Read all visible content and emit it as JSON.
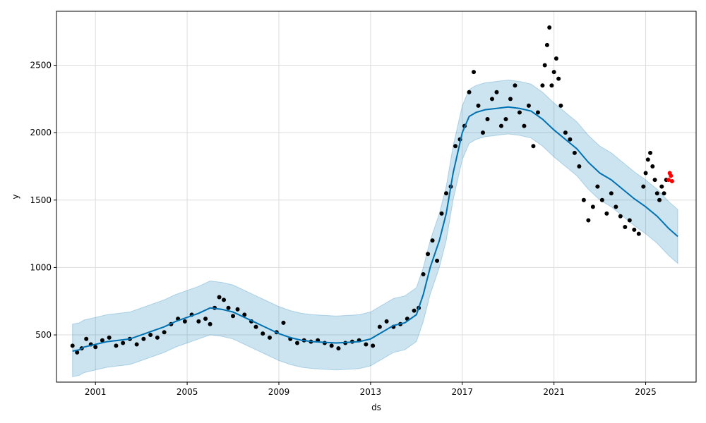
{
  "chart_data": {
    "type": "line",
    "xlabel": "ds",
    "ylabel": "y",
    "xlim": [
      1999.3,
      2027.2
    ],
    "ylim": [
      150,
      2900
    ],
    "grid": true,
    "x_ticks": [
      {
        "value": 2001,
        "label": "2001"
      },
      {
        "value": 2005,
        "label": "2005"
      },
      {
        "value": 2009,
        "label": "2009"
      },
      {
        "value": 2013,
        "label": "2013"
      },
      {
        "value": 2017,
        "label": "2017"
      },
      {
        "value": 2021,
        "label": "2021"
      },
      {
        "value": 2025,
        "label": "2025"
      }
    ],
    "y_ticks": [
      {
        "value": 500,
        "label": "500"
      },
      {
        "value": 1000,
        "label": "1000"
      },
      {
        "value": 1500,
        "label": "1500"
      },
      {
        "value": 2000,
        "label": "2000"
      },
      {
        "value": 2500,
        "label": "2500"
      }
    ],
    "colors": {
      "forecast_line": "#0072b2",
      "uncertainty_band": "#0072b2",
      "observed_points": "#000000",
      "test_points": "#ff0000",
      "grid": "#dddddd"
    },
    "series": [
      {
        "kind": "forecast",
        "x": [
          2000.0,
          2000.3,
          2000.5,
          2001.0,
          2001.5,
          2002.0,
          2002.5,
          2003.0,
          2003.5,
          2004.0,
          2004.5,
          2005.0,
          2005.5,
          2006.0,
          2006.5,
          2007.0,
          2007.5,
          2008.0,
          2008.5,
          2009.0,
          2009.5,
          2010.0,
          2010.5,
          2011.0,
          2011.5,
          2012.0,
          2012.5,
          2013.0,
          2013.5,
          2014.0,
          2014.5,
          2015.0,
          2015.3,
          2015.6,
          2016.0,
          2016.3,
          2016.6,
          2017.0,
          2017.3,
          2017.6,
          2018.0,
          2018.5,
          2019.0,
          2019.5,
          2020.0,
          2020.5,
          2021.0,
          2021.5,
          2022.0,
          2022.5,
          2023.0,
          2023.5,
          2024.0,
          2024.5,
          2025.0,
          2025.5,
          2026.0,
          2026.4
        ],
        "yhat": [
          380,
          390,
          410,
          430,
          450,
          460,
          470,
          500,
          530,
          560,
          600,
          630,
          660,
          700,
          690,
          670,
          630,
          590,
          550,
          510,
          480,
          460,
          450,
          445,
          440,
          445,
          450,
          470,
          520,
          570,
          590,
          650,
          800,
          1000,
          1200,
          1400,
          1700,
          2000,
          2120,
          2150,
          2170,
          2180,
          2190,
          2180,
          2160,
          2100,
          2020,
          1950,
          1880,
          1780,
          1700,
          1650,
          1580,
          1510,
          1450,
          1380,
          1290,
          1230
        ],
        "yhat_lower": [
          190,
          200,
          220,
          240,
          260,
          270,
          280,
          310,
          340,
          370,
          410,
          440,
          470,
          500,
          490,
          470,
          430,
          390,
          350,
          310,
          280,
          260,
          250,
          245,
          240,
          245,
          250,
          270,
          320,
          370,
          390,
          450,
          600,
          800,
          1000,
          1200,
          1500,
          1800,
          1920,
          1950,
          1970,
          1980,
          1990,
          1980,
          1960,
          1900,
          1820,
          1750,
          1680,
          1580,
          1500,
          1450,
          1380,
          1310,
          1250,
          1180,
          1090,
          1030
        ],
        "yhat_upper": [
          580,
          590,
          610,
          630,
          650,
          660,
          670,
          700,
          730,
          760,
          800,
          830,
          860,
          900,
          890,
          870,
          830,
          790,
          750,
          710,
          680,
          660,
          650,
          645,
          640,
          645,
          650,
          670,
          720,
          770,
          790,
          850,
          1000,
          1200,
          1400,
          1600,
          1900,
          2200,
          2320,
          2350,
          2370,
          2380,
          2390,
          2380,
          2360,
          2300,
          2220,
          2150,
          2080,
          1980,
          1900,
          1850,
          1780,
          1710,
          1650,
          1580,
          1490,
          1430
        ]
      },
      {
        "kind": "observed",
        "x": [
          2000.0,
          2000.2,
          2000.4,
          2000.6,
          2000.8,
          2001.0,
          2001.3,
          2001.6,
          2001.9,
          2002.2,
          2002.5,
          2002.8,
          2003.1,
          2003.4,
          2003.7,
          2004.0,
          2004.3,
          2004.6,
          2004.9,
          2005.2,
          2005.5,
          2005.8,
          2006.0,
          2006.2,
          2006.4,
          2006.6,
          2006.8,
          2007.0,
          2007.2,
          2007.5,
          2007.8,
          2008.0,
          2008.3,
          2008.6,
          2008.9,
          2009.2,
          2009.5,
          2009.8,
          2010.1,
          2010.4,
          2010.7,
          2011.0,
          2011.3,
          2011.6,
          2011.9,
          2012.2,
          2012.5,
          2012.8,
          2013.1,
          2013.4,
          2013.7,
          2014.0,
          2014.3,
          2014.6,
          2014.9,
          2015.1,
          2015.3,
          2015.5,
          2015.7,
          2015.9,
          2016.1,
          2016.3,
          2016.5,
          2016.7,
          2016.9,
          2017.1,
          2017.3,
          2017.5,
          2017.7,
          2017.9,
          2018.1,
          2018.3,
          2018.5,
          2018.7,
          2018.9,
          2019.1,
          2019.3,
          2019.5,
          2019.7,
          2019.9,
          2020.1,
          2020.3,
          2020.5,
          2020.6,
          2020.7,
          2020.8,
          2020.9,
          2021.0,
          2021.1,
          2021.2,
          2021.3,
          2021.5,
          2021.7,
          2021.9,
          2022.1,
          2022.3,
          2022.5,
          2022.7,
          2022.9,
          2023.1,
          2023.3,
          2023.5,
          2023.7,
          2023.9,
          2024.1,
          2024.3,
          2024.5,
          2024.7,
          2024.9,
          2025.0,
          2025.1,
          2025.2,
          2025.3,
          2025.4,
          2025.5,
          2025.6,
          2025.7,
          2025.8,
          2025.9
        ],
        "y": [
          420,
          370,
          400,
          470,
          430,
          410,
          460,
          480,
          420,
          440,
          470,
          430,
          470,
          500,
          480,
          520,
          580,
          620,
          600,
          650,
          600,
          620,
          580,
          700,
          780,
          760,
          700,
          640,
          690,
          650,
          600,
          560,
          510,
          480,
          520,
          590,
          470,
          440,
          460,
          450,
          460,
          440,
          420,
          400,
          440,
          450,
          460,
          430,
          420,
          560,
          600,
          560,
          580,
          620,
          680,
          700,
          950,
          1100,
          1200,
          1050,
          1400,
          1550,
          1600,
          1900,
          1950,
          2050,
          2300,
          2450,
          2200,
          2000,
          2100,
          2250,
          2300,
          2050,
          2100,
          2250,
          2350,
          2150,
          2050,
          2200,
          1900,
          2150,
          2350,
          2500,
          2650,
          2780,
          2350,
          2450,
          2550,
          2400,
          2200,
          2000,
          1950,
          1850,
          1750,
          1500,
          1350,
          1450,
          1600,
          1500,
          1400,
          1550,
          1450,
          1380,
          1300,
          1350,
          1280,
          1250,
          1600,
          1700,
          1800,
          1850,
          1750,
          1650,
          1550,
          1500,
          1600,
          1550,
          1650
        ]
      },
      {
        "kind": "test",
        "x": [
          2026.0,
          2026.05,
          2026.1,
          2026.15
        ],
        "y": [
          1650,
          1700,
          1680,
          1640
        ]
      }
    ]
  }
}
